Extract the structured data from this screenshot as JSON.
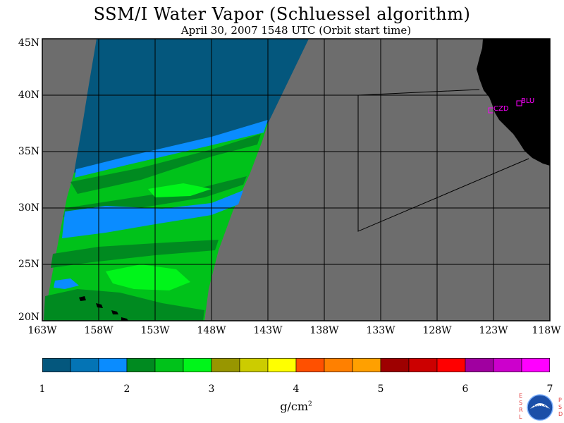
{
  "header": {
    "title": "SSM/I Water Vapor (Schluessel algorithm)",
    "subtitle": "April 30, 2007  1548 UTC  (Orbit start time)"
  },
  "map": {
    "lat_labels": [
      "45N",
      "40N",
      "35N",
      "30N",
      "25N",
      "20N"
    ],
    "lon_labels": [
      "163W",
      "158W",
      "153W",
      "148W",
      "143W",
      "138W",
      "133W",
      "128W",
      "123W",
      "118W"
    ],
    "station_labels": [
      "CZD",
      "BLU"
    ],
    "colors": {
      "no_data": "#6d6d6d",
      "land": "#000000",
      "grid": "#000000",
      "station": "#ff00ff"
    }
  },
  "colorbar": {
    "tick_labels": [
      "1",
      "2",
      "3",
      "4",
      "5",
      "6",
      "7"
    ],
    "units_text": "g/cm",
    "units_exp": "2",
    "colors": [
      "#04577d",
      "#0474b5",
      "#0a8cff",
      "#008a20",
      "#00c21a",
      "#00f51a",
      "#989600",
      "#cccc00",
      "#ffff00",
      "#ff5000",
      "#ff8000",
      "#ffa000",
      "#9e0000",
      "#cc0000",
      "#ff0000",
      "#a000a0",
      "#cc00cc",
      "#ff00ff"
    ]
  },
  "logo": {
    "left_letters": [
      "E",
      "S",
      "R",
      "L"
    ],
    "right_letters": [
      "P",
      "S",
      "D"
    ],
    "badge_text": "NOAA"
  }
}
